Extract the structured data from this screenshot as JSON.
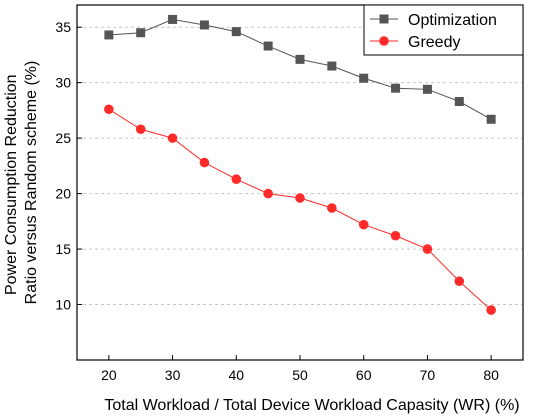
{
  "chart_data": {
    "type": "line",
    "title": "",
    "xlabel": "Total Workload / Total Device Workload Capasity (WR) (%)",
    "ylabel": [
      "Power Consumption Reduction",
      "Ratio versus Random scheme (%)"
    ],
    "x": [
      20,
      25,
      30,
      35,
      40,
      45,
      50,
      55,
      60,
      65,
      70,
      75,
      80
    ],
    "xlim": [
      15,
      85
    ],
    "ylim": [
      5,
      37
    ],
    "xticks": [
      "20",
      "30",
      "40",
      "50",
      "60",
      "70",
      "80"
    ],
    "yticks": [
      "10",
      "15",
      "20",
      "25",
      "30",
      "35"
    ],
    "grid": "horizontal dashed",
    "legend_position": "top-right",
    "series": [
      {
        "name": "Optimization",
        "color": "#555555",
        "marker": "square",
        "values": [
          34.3,
          34.5,
          35.7,
          35.2,
          34.6,
          33.3,
          32.1,
          31.5,
          30.4,
          29.5,
          29.4,
          28.3,
          26.7
        ]
      },
      {
        "name": "Greedy",
        "color": "#ff2a2a",
        "marker": "circle",
        "values": [
          27.6,
          25.8,
          25.0,
          22.8,
          21.3,
          20.0,
          19.6,
          18.7,
          17.2,
          16.2,
          15.0,
          12.1,
          9.5
        ]
      }
    ]
  }
}
